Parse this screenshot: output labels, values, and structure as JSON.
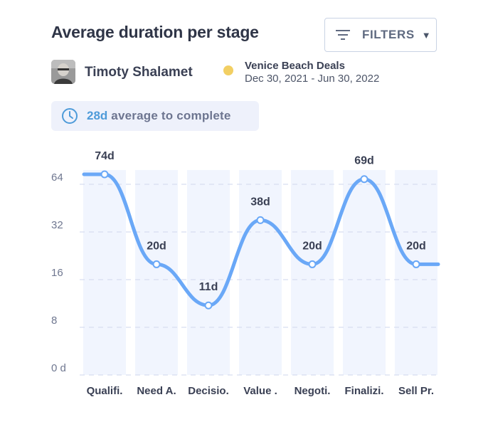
{
  "header": {
    "title": "Average duration per stage",
    "filters_label": "FILTERS",
    "filters_icon": "filter-lines-icon",
    "caret_icon": "caret-down-icon"
  },
  "user": {
    "name": "Timoty Shalamet"
  },
  "deal": {
    "name": "Venice Beach Deals",
    "range": "Dec 30, 2021 - Jun 30, 2022",
    "dot_color": "#f2cf63"
  },
  "summary": {
    "icon": "clock-icon",
    "value": "28d",
    "text": "average to complete"
  },
  "chart_data": {
    "type": "line",
    "categories": [
      "Qualifi.",
      "Need A.",
      "Decisio.",
      "Value .",
      "Negoti.",
      "Finalizi.",
      "Sell Pr."
    ],
    "values": [
      74,
      20,
      11,
      38,
      20,
      69,
      20
    ],
    "data_labels": [
      "74d",
      "20d",
      "11d",
      "38d",
      "20d",
      "69d",
      "20d"
    ],
    "y_ticks": [
      {
        "value": 0,
        "label": "0 d"
      },
      {
        "value": 8,
        "label": "8"
      },
      {
        "value": 16,
        "label": "16"
      },
      {
        "value": 32,
        "label": "32"
      },
      {
        "value": 64,
        "label": "64"
      }
    ],
    "y_scale": "log2",
    "grid": true,
    "line_color": "#6aa8f7",
    "bar_color": "#f1f5fe"
  }
}
